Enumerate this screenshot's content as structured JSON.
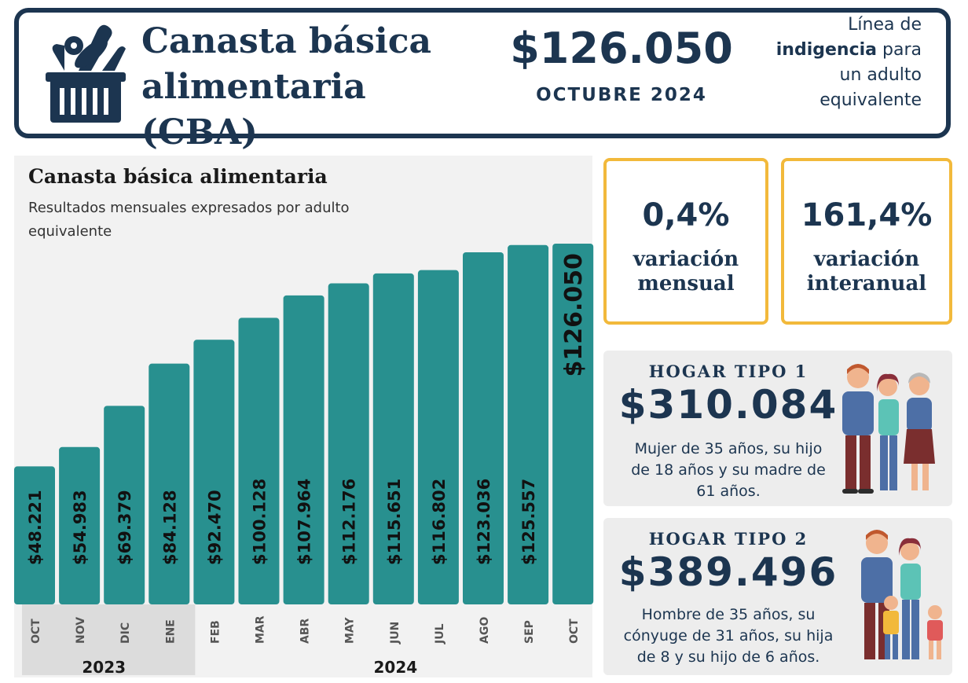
{
  "header": {
    "title": "Canasta básica alimentaria (CBA)",
    "amount": "$126.050",
    "date": "OCTUBRE 2024",
    "note_line1": "Línea de",
    "note_bold": "indigencia",
    "note_line2_rest": " para",
    "note_line3": "un adulto",
    "note_line4": "equivalente"
  },
  "variations": {
    "monthly": {
      "value": "0,4%",
      "label_line1": "variación",
      "label_line2": "mensual"
    },
    "annual": {
      "value": "161,4%",
      "label_line1": "variación",
      "label_line2": "interanual"
    }
  },
  "households": [
    {
      "title": "HOGAR TIPO 1",
      "amount": "$310.084",
      "desc_line1": "Mujer de 35 años, su hijo",
      "desc_line2": "de 18 años y su madre de",
      "desc_line3": "61 años."
    },
    {
      "title": "HOGAR TIPO 2",
      "amount": "$389.496",
      "desc_line1": "Hombre de 35 años, su",
      "desc_line2": "cónyuge de 31 años, su hija",
      "desc_line3": "de 8 y su hijo de 6 años."
    }
  ],
  "colors": {
    "navy": "#1c3550",
    "teal": "#28908f",
    "yellow": "#f2b93b",
    "panel": "#f2f2f2"
  },
  "chart_data": {
    "type": "bar",
    "title": "Canasta básica alimentaria",
    "subtitle": "Resultados mensuales expresados por adulto equivalente",
    "categories": [
      "OCT",
      "NOV",
      "DIC",
      "ENE",
      "FEB",
      "MAR",
      "ABR",
      "MAY",
      "JUN",
      "JUL",
      "AGO",
      "SEP",
      "OCT"
    ],
    "values": [
      48221,
      54983,
      69379,
      84128,
      92470,
      100128,
      107964,
      112176,
      115651,
      116802,
      123036,
      125557,
      126050
    ],
    "labels": [
      "$48.221",
      "$54.983",
      "$69.379",
      "$84.128",
      "$92.470",
      "$100.128",
      "$107.964",
      "$112.176",
      "$115.651",
      "$116.802",
      "$123.036",
      "$125.557",
      "$126.050"
    ],
    "years": [
      {
        "label": "2023",
        "start": 0,
        "end": 3
      },
      {
        "label": "2024",
        "start": 4,
        "end": 12
      }
    ],
    "highlight_index": 12,
    "xlabel": "",
    "ylabel": "",
    "ylim": [
      0,
      126050
    ]
  }
}
